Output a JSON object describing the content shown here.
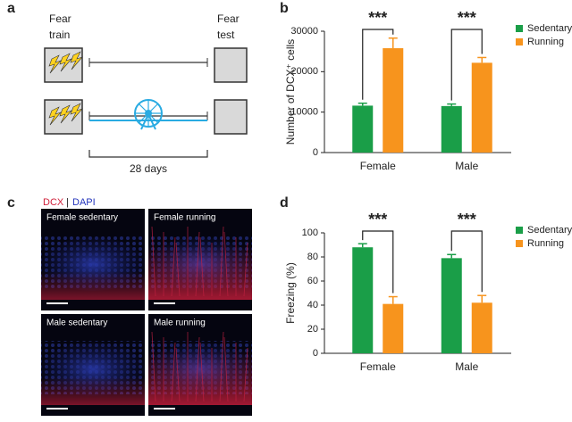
{
  "panel_labels": [
    "a",
    "b",
    "c",
    "d"
  ],
  "diagram": {
    "fear_train": [
      "Fear",
      "train"
    ],
    "fear_test": [
      "Fear",
      "test"
    ],
    "duration": "28 days"
  },
  "image_legend": {
    "dcx": "DCX",
    "separator": "|",
    "dapi": "DAPI"
  },
  "image_tiles": [
    "Female sedentary",
    "Female running",
    "Male sedentary",
    "Male running"
  ],
  "chart_data": [
    {
      "type": "bar",
      "ylabel": "Number of DCX⁺ cells",
      "categories": [
        "Female",
        "Male"
      ],
      "series": [
        {
          "name": "Sedentary",
          "color": "#1a9e48",
          "values": [
            11600,
            11500
          ],
          "errors": [
            600,
            500
          ]
        },
        {
          "name": "Running",
          "color": "#f7941d",
          "values": [
            25800,
            22200
          ],
          "errors": [
            2500,
            1300
          ]
        }
      ],
      "significance": [
        "***",
        "***"
      ],
      "ylim": [
        0,
        30000
      ],
      "yticks": [
        0,
        10000,
        20000,
        30000
      ],
      "grid": false
    },
    {
      "type": "bar",
      "ylabel": "Freezing (%)",
      "categories": [
        "Female",
        "Male"
      ],
      "series": [
        {
          "name": "Sedentary",
          "color": "#1a9e48",
          "values": [
            88,
            79
          ],
          "errors": [
            3,
            3
          ]
        },
        {
          "name": "Running",
          "color": "#f7941d",
          "values": [
            41,
            42
          ],
          "errors": [
            6,
            6
          ]
        }
      ],
      "significance": [
        "***",
        "***"
      ],
      "ylim": [
        0,
        100
      ],
      "yticks": [
        0,
        20,
        40,
        60,
        80,
        100
      ],
      "grid": false
    }
  ]
}
